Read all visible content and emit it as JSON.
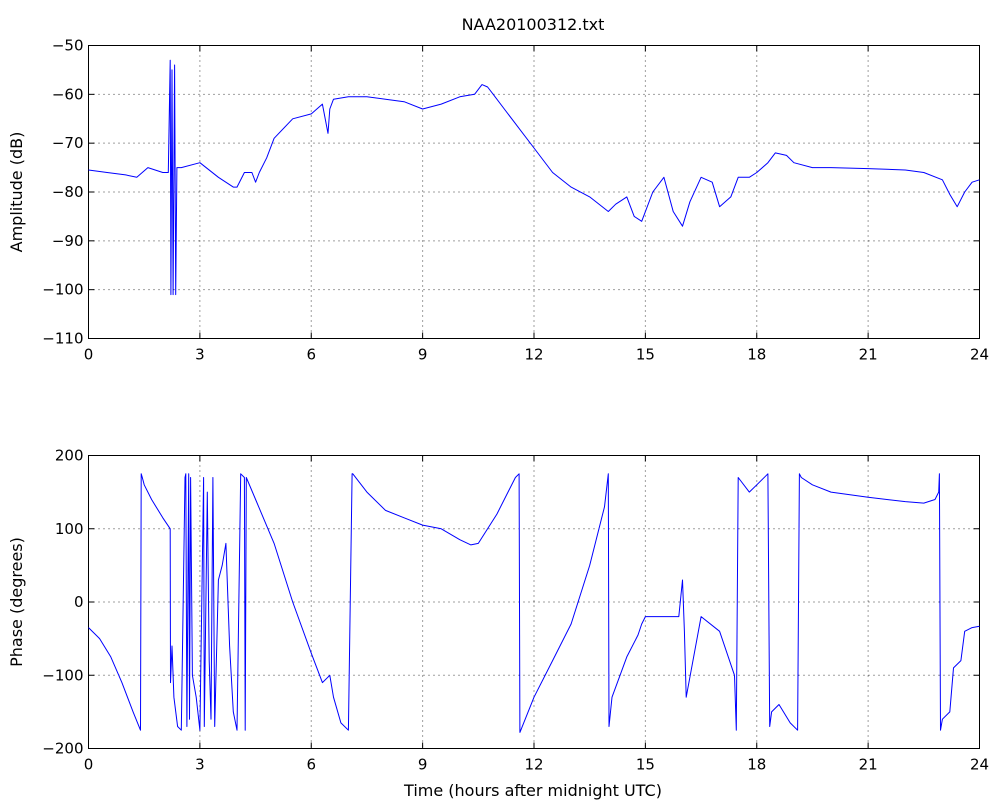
{
  "chart_data": [
    {
      "type": "line",
      "title": "NAA20100312.txt",
      "xlabel": "",
      "ylabel": "Amplitude (dB)",
      "xlim": [
        0,
        24
      ],
      "ylim": [
        -110,
        -50
      ],
      "xticks": [
        "0",
        "3",
        "6",
        "9",
        "12",
        "15",
        "18",
        "21",
        "24"
      ],
      "yticks": [
        "−50",
        "−60",
        "−70",
        "−80",
        "−90",
        "−100",
        "−110"
      ],
      "grid": true,
      "color": "#0000ff",
      "series": [
        {
          "x": [
            0,
            0.5,
            1.0,
            1.3,
            1.6,
            2.0,
            2.15,
            2.2,
            2.22,
            2.25,
            2.28,
            2.32,
            2.35,
            2.38,
            2.5,
            3.0,
            3.5,
            3.9,
            4.0,
            4.2,
            4.4,
            4.5,
            4.6,
            4.8,
            5.0,
            5.5,
            6.0,
            6.3,
            6.45,
            6.5,
            6.6,
            7.0,
            7.5,
            8.0,
            8.5,
            9.0,
            9.5,
            10.0,
            10.4,
            10.6,
            10.75,
            10.9,
            11.2,
            11.5,
            12.0,
            12.5,
            13.0,
            13.5,
            14.0,
            14.2,
            14.5,
            14.7,
            14.9,
            15.2,
            15.5,
            15.75,
            16.0,
            16.2,
            16.5,
            16.8,
            17.0,
            17.3,
            17.5,
            17.8,
            18.0,
            18.3,
            18.5,
            18.8,
            19.0,
            19.5,
            20.0,
            21.0,
            22.0,
            22.5,
            23.0,
            23.2,
            23.4,
            23.6,
            23.8,
            24.0
          ],
          "y": [
            -75.5,
            -76,
            -76.5,
            -77,
            -75,
            -76,
            -76,
            -53,
            -101,
            -55,
            -101,
            -54,
            -101,
            -75,
            -75,
            -74,
            -77,
            -79,
            -79,
            -76,
            -76,
            -78,
            -76,
            -73,
            -69,
            -65,
            -64,
            -62,
            -68,
            -63,
            -61,
            -60.5,
            -60.5,
            -61,
            -61.5,
            -63,
            -62,
            -60.5,
            -60,
            -58,
            -58.5,
            -60,
            -63,
            -66,
            -71,
            -76,
            -79,
            -81,
            -84,
            -82.5,
            -81,
            -85,
            -86,
            -80,
            -77,
            -84,
            -87,
            -82,
            -77,
            -78,
            -83,
            -81,
            -77,
            -77,
            -76,
            -74,
            -72,
            -72.5,
            -74,
            -75,
            -75,
            -75.2,
            -75.5,
            -76,
            -77.5,
            -80.5,
            -83,
            -80,
            -78,
            -77.5
          ]
        }
      ]
    },
    {
      "type": "line",
      "title": "",
      "xlabel": "Time (hours after midnight UTC)",
      "ylabel": "Phase (degrees)",
      "xlim": [
        0,
        24
      ],
      "ylim": [
        -200,
        200
      ],
      "xticks": [
        "0",
        "3",
        "6",
        "9",
        "12",
        "15",
        "18",
        "21",
        "24"
      ],
      "yticks": [
        "200",
        "100",
        "0",
        "−100",
        "−200"
      ],
      "grid": true,
      "color": "#0000ff",
      "series": [
        {
          "x": [
            0,
            0.3,
            0.6,
            0.9,
            1.2,
            1.4,
            1.42,
            1.45,
            1.5,
            1.7,
            2.0,
            2.2,
            2.21,
            2.25,
            2.3,
            2.4,
            2.5,
            2.6,
            2.62,
            2.65,
            2.7,
            2.72,
            2.75,
            2.8,
            2.9,
            3.0,
            3.1,
            3.12,
            3.2,
            3.25,
            3.3,
            3.35,
            3.4,
            3.5,
            3.6,
            3.7,
            3.8,
            3.9,
            4.0,
            4.1,
            4.2,
            4.22,
            4.25,
            4.5,
            5.0,
            5.5,
            6.0,
            6.3,
            6.5,
            6.6,
            6.8,
            7.0,
            7.1,
            7.12,
            7.5,
            8.0,
            8.5,
            9.0,
            9.5,
            10.0,
            10.3,
            10.5,
            11.0,
            11.5,
            11.6,
            11.62,
            12.0,
            12.5,
            13.0,
            13.5,
            13.9,
            14.0,
            14.02,
            14.1,
            14.5,
            14.8,
            14.9,
            15.0,
            15.5,
            15.9,
            16.0,
            16.05,
            16.1,
            16.5,
            17.0,
            17.4,
            17.45,
            17.5,
            17.8,
            18.0,
            18.3,
            18.35,
            18.4,
            18.6,
            18.9,
            19.1,
            19.15,
            19.2,
            19.5,
            20.0,
            21.0,
            22.0,
            22.5,
            22.8,
            22.9,
            22.92,
            22.95,
            23.0,
            23.2,
            23.3,
            23.5,
            23.6,
            23.8,
            24.0
          ],
          "y": [
            -35,
            -50,
            -75,
            -110,
            -150,
            -175,
            175,
            170,
            160,
            140,
            115,
            100,
            -110,
            -60,
            -130,
            -170,
            -175,
            170,
            175,
            -170,
            175,
            -160,
            170,
            -100,
            -130,
            -175,
            170,
            -170,
            150,
            -80,
            -160,
            170,
            -170,
            30,
            50,
            80,
            -60,
            -150,
            -175,
            175,
            170,
            -175,
            170,
            140,
            80,
            0,
            -70,
            -110,
            -100,
            -130,
            -165,
            -175,
            175,
            175,
            150,
            125,
            115,
            105,
            100,
            85,
            78,
            80,
            120,
            170,
            175,
            -178,
            -130,
            -80,
            -30,
            50,
            130,
            175,
            -170,
            -130,
            -75,
            -45,
            -30,
            -20,
            -20,
            -20,
            30,
            -40,
            -130,
            -20,
            -40,
            -100,
            -175,
            170,
            150,
            160,
            175,
            -170,
            -150,
            -140,
            -165,
            -175,
            175,
            170,
            160,
            150,
            143,
            137,
            135,
            140,
            150,
            175,
            -175,
            -160,
            -150,
            -90,
            -80,
            -40,
            -35,
            -33
          ]
        }
      ]
    }
  ]
}
